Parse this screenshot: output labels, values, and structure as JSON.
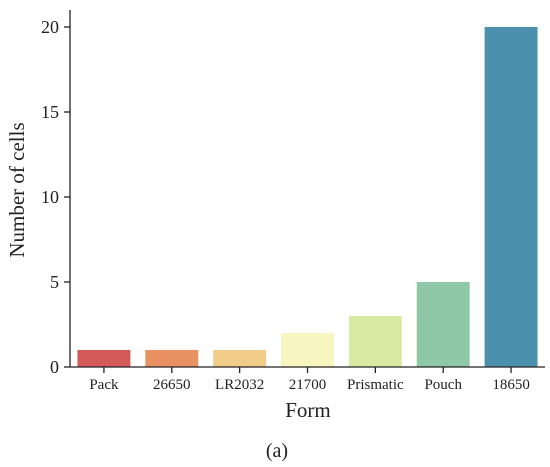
{
  "chart_data": {
    "type": "bar",
    "title": "",
    "xlabel": "Form",
    "ylabel": "Number of cells",
    "categories": [
      "Pack",
      "26650",
      "LR2032",
      "21700",
      "Prismatic",
      "Pouch",
      "18650"
    ],
    "values": [
      1,
      1,
      1,
      2,
      3,
      5,
      20
    ],
    "colors": [
      "#d45a5a",
      "#ea9163",
      "#f2cd8a",
      "#f7f5c0",
      "#d9eba3",
      "#8fc8a7",
      "#4b90ad"
    ],
    "ylim": [
      0,
      21
    ],
    "yticks": [
      0,
      5,
      10,
      15,
      20
    ],
    "grid": false
  },
  "caption": "(a)"
}
